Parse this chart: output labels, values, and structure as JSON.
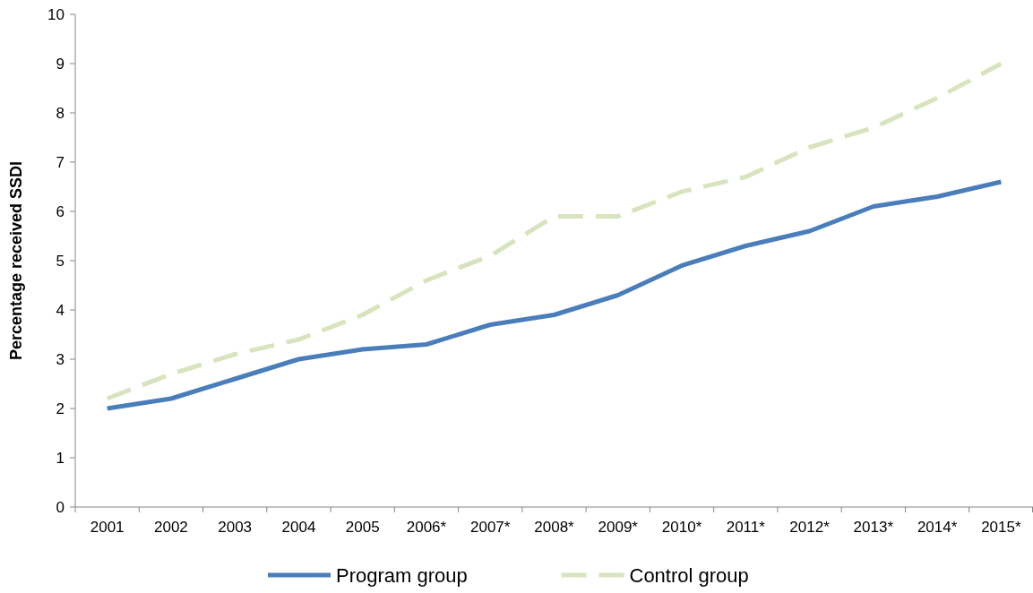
{
  "chart_data": {
    "type": "line",
    "ylabel": "Percentage received SSDI",
    "categories": [
      "2001",
      "2002",
      "2003",
      "2004",
      "2005",
      "2006*",
      "2007*",
      "2008*",
      "2009*",
      "2010*",
      "2011*",
      "2012*",
      "2013*",
      "2014*",
      "2015*"
    ],
    "series": [
      {
        "name": "Program group",
        "color": "#4a7ebb",
        "line_style": "solid",
        "values": [
          2.0,
          2.2,
          2.6,
          3.0,
          3.2,
          3.3,
          3.7,
          3.9,
          4.3,
          4.9,
          5.3,
          5.6,
          6.1,
          6.3,
          6.6
        ]
      },
      {
        "name": "Control group",
        "color": "#d7e4bd",
        "line_style": "dashed",
        "values": [
          2.2,
          2.7,
          3.1,
          3.4,
          3.9,
          4.6,
          5.1,
          5.9,
          5.9,
          6.4,
          6.7,
          7.3,
          7.7,
          8.3,
          9.0
        ]
      }
    ],
    "ylim": [
      0,
      10
    ],
    "yticks": [
      0,
      1,
      2,
      3,
      4,
      5,
      6,
      7,
      8,
      9,
      10
    ],
    "grid": false,
    "legend": "bottom"
  }
}
